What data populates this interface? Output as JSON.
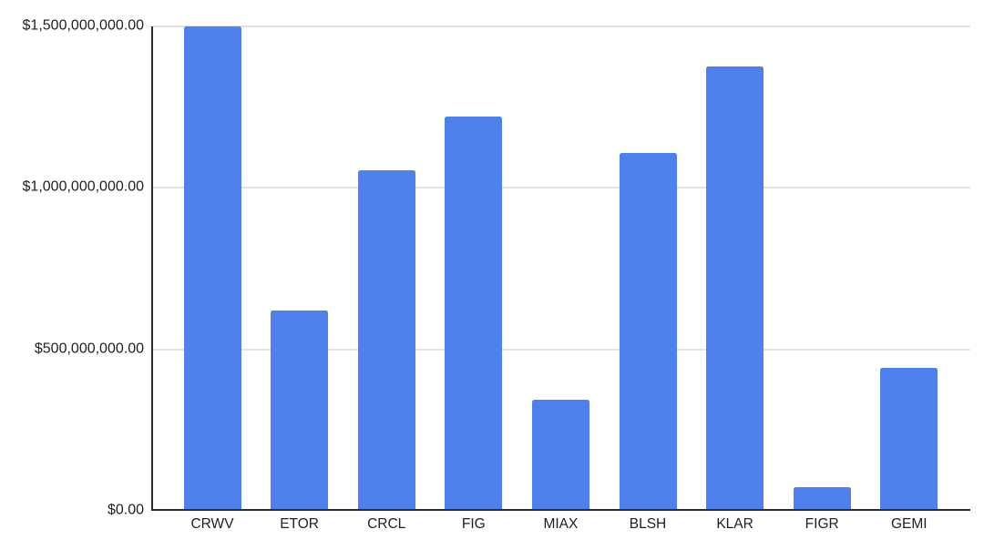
{
  "chart_data": {
    "type": "bar",
    "title": "",
    "xlabel": "",
    "ylabel": "",
    "categories": [
      "CRWV",
      "ETOR",
      "CRCL",
      "FIG",
      "MIAX",
      "BLSH",
      "KLAR",
      "FIGR",
      "GEMI"
    ],
    "values": [
      1500000000,
      620000000,
      1055000000,
      1220000000,
      344000000,
      1108000000,
      1376000000,
      73000000,
      443000000
    ],
    "ylim": [
      0,
      1500000000
    ],
    "yticks": [
      {
        "value": 1500000000,
        "label": "$1,500,000,000.00"
      },
      {
        "value": 1000000000,
        "label": "$1,000,000,000.00"
      },
      {
        "value": 500000000,
        "label": "$500,000,000.00"
      },
      {
        "value": 0,
        "label": "$0.00"
      }
    ],
    "grid": true,
    "legend_position": "none",
    "bar_color": "#4e81ec",
    "background_color": "#ffffff",
    "axis_line_color": "#2e2e2e",
    "gridline_color": "#e2e2e2",
    "text_color": "#1f1f1f"
  }
}
